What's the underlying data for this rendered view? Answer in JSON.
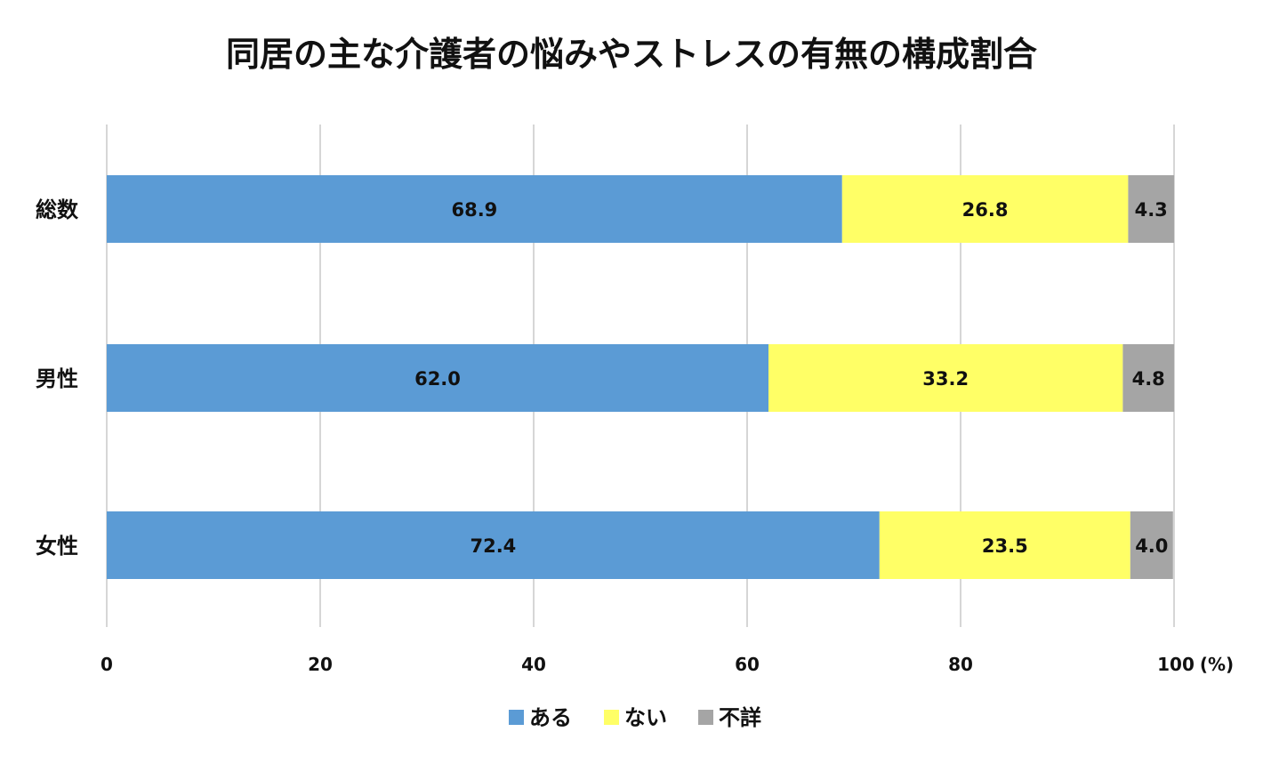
{
  "chart_data": {
    "type": "bar",
    "orientation": "horizontal",
    "stacked": true,
    "title": "同居の主な介護者の悩みやストレスの有無の構成割合",
    "categories": [
      "総数",
      "男性",
      "女性"
    ],
    "series": [
      {
        "name": "ある",
        "color": "#5b9bd5",
        "values": [
          68.9,
          62.0,
          72.4
        ]
      },
      {
        "name": "ない",
        "color": "#ffff66",
        "values": [
          26.8,
          33.2,
          23.5
        ]
      },
      {
        "name": "不詳",
        "color": "#a5a5a5",
        "values": [
          4.3,
          4.8,
          4.0
        ]
      }
    ],
    "value_labels": [
      [
        "68.9",
        "26.8",
        "4.3"
      ],
      [
        "62.0",
        "33.2",
        "4.8"
      ],
      [
        "72.4",
        "23.5",
        "4.0"
      ]
    ],
    "xlim": [
      0,
      100
    ],
    "xticks": [
      0,
      20,
      40,
      60,
      80,
      100
    ],
    "xtick_labels": [
      "0",
      "20",
      "40",
      "60",
      "80",
      "100"
    ],
    "x_unit": "(%)",
    "grid": true,
    "legend_position": "bottom"
  }
}
